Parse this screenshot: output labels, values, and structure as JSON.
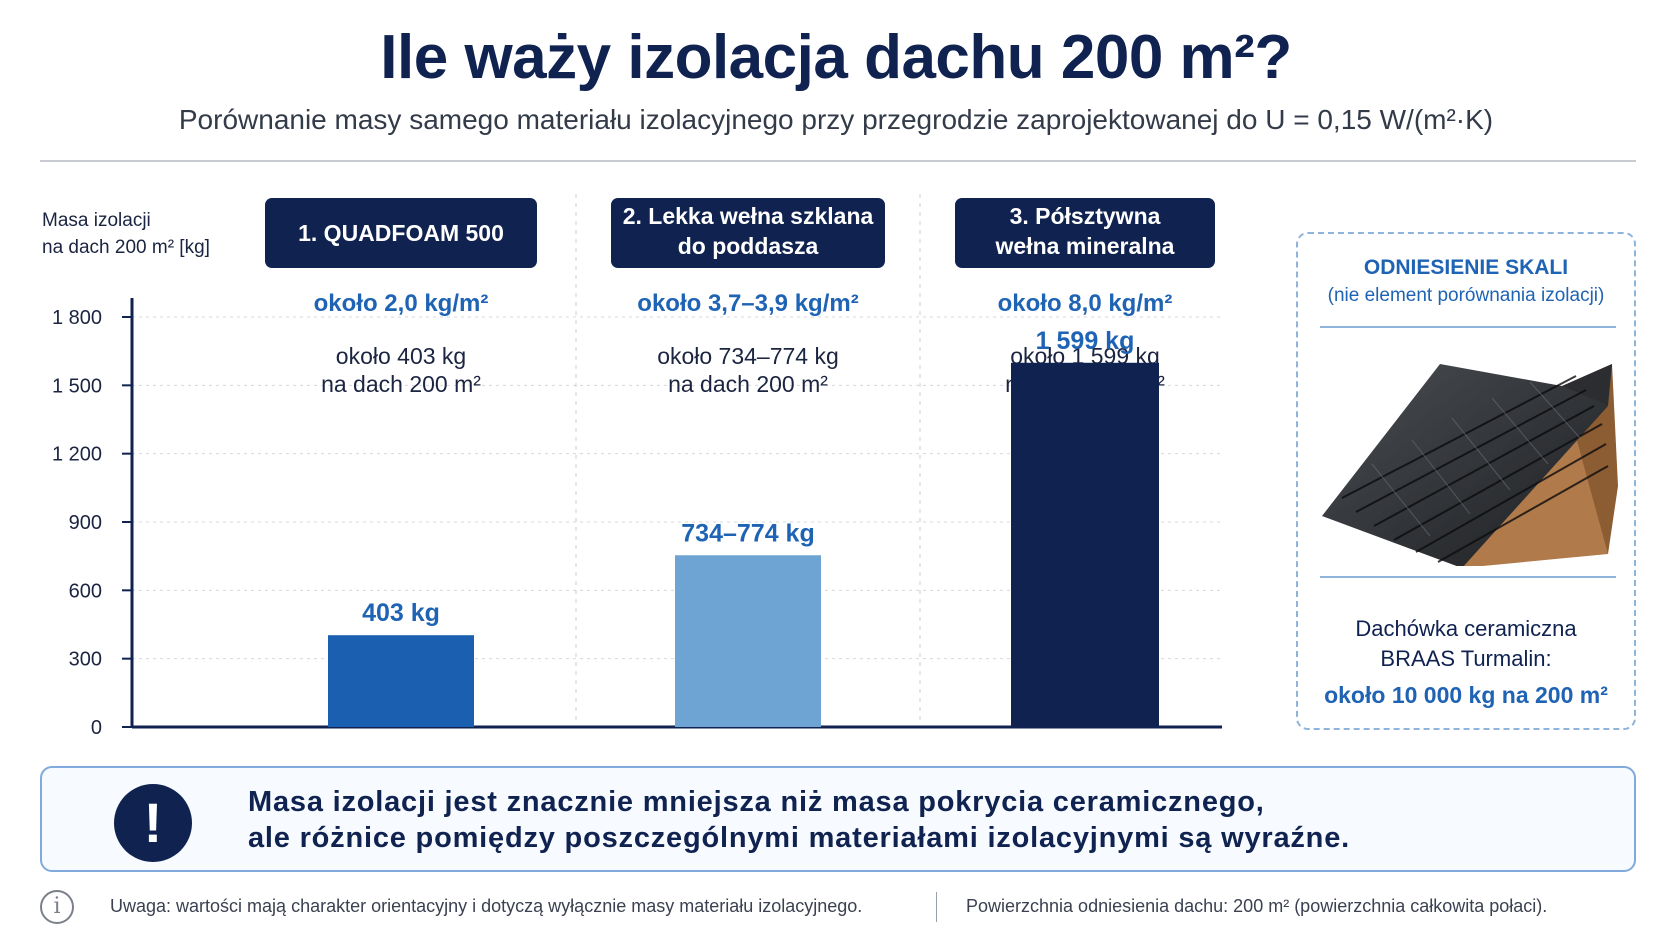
{
  "header": {
    "title": "Ile waży izolacja dachu 200 m²?",
    "subtitle": "Porównanie masy samego materiału izolacyjnego przy przegrodzie zaprojektowanej do U = 0,15 W/(m²·K)"
  },
  "chart_data": {
    "type": "bar",
    "title": "",
    "ylabel_lines": [
      "Masa izolacji",
      "na dach 200 m² [kg]"
    ],
    "ylim": [
      0,
      1800
    ],
    "yticks": [
      0,
      300,
      600,
      900,
      1200,
      1500,
      1800
    ],
    "ytick_labels": [
      "0",
      "300",
      "600",
      "900",
      "1 200",
      "1 500",
      "1 800"
    ],
    "grid": true,
    "categories": [
      {
        "header_lines": [
          "1. QUADFOAM 500"
        ],
        "density": "około 2,0 kg/m²",
        "mass_lines": [
          "około 403 kg",
          "na dach 200 m²"
        ],
        "value": 403,
        "value_label": "403 kg",
        "color": "#1a5fb0"
      },
      {
        "header_lines": [
          "2. Lekka wełna szklana",
          "do poddasza"
        ],
        "density": "około 3,7–3,9 kg/m²",
        "mass_lines": [
          "około 734–774 kg",
          "na dach 200 m²"
        ],
        "value": 754,
        "value_range": [
          734,
          774
        ],
        "value_label": "734–774 kg",
        "color": "#6ea4d4"
      },
      {
        "header_lines": [
          "3. Półsztywna",
          "wełna mineralna"
        ],
        "density": "około 8,0 kg/m²",
        "mass_lines": [
          "około 1 599 kg",
          "na dach 200 m²"
        ],
        "value": 1599,
        "value_label": "1 599 kg",
        "color": "#0f2250"
      }
    ]
  },
  "reference": {
    "title": "ODNIESIENIE SKALI",
    "subtitle": "(nie element porównania izolacji)",
    "name_line1": "Dachówka ceramiczna",
    "name_line2": "BRAAS Turmalin:",
    "value": "około 10 000 kg na 200 m²",
    "image_icon": "roof-tile-image"
  },
  "note": {
    "icon": "exclamation-icon",
    "line1": "Masa izolacji jest znacznie mniejsza niż masa pokrycia ceramicznego,",
    "line2": "ale różnice pomiędzy poszczególnymi materiałami izolacyjnymi są wyraźne."
  },
  "footer": {
    "icon": "info-icon",
    "left": "Uwaga: wartości mają charakter orientacyjny i dotyczą wyłącznie masy materiału izolacyjnego.",
    "right": "Powierzchnia odniesienia dachu: 200 m² (powierzchnia całkowita połaci)."
  },
  "colors": {
    "navy": "#0f2250",
    "accent": "#1e63b4"
  }
}
